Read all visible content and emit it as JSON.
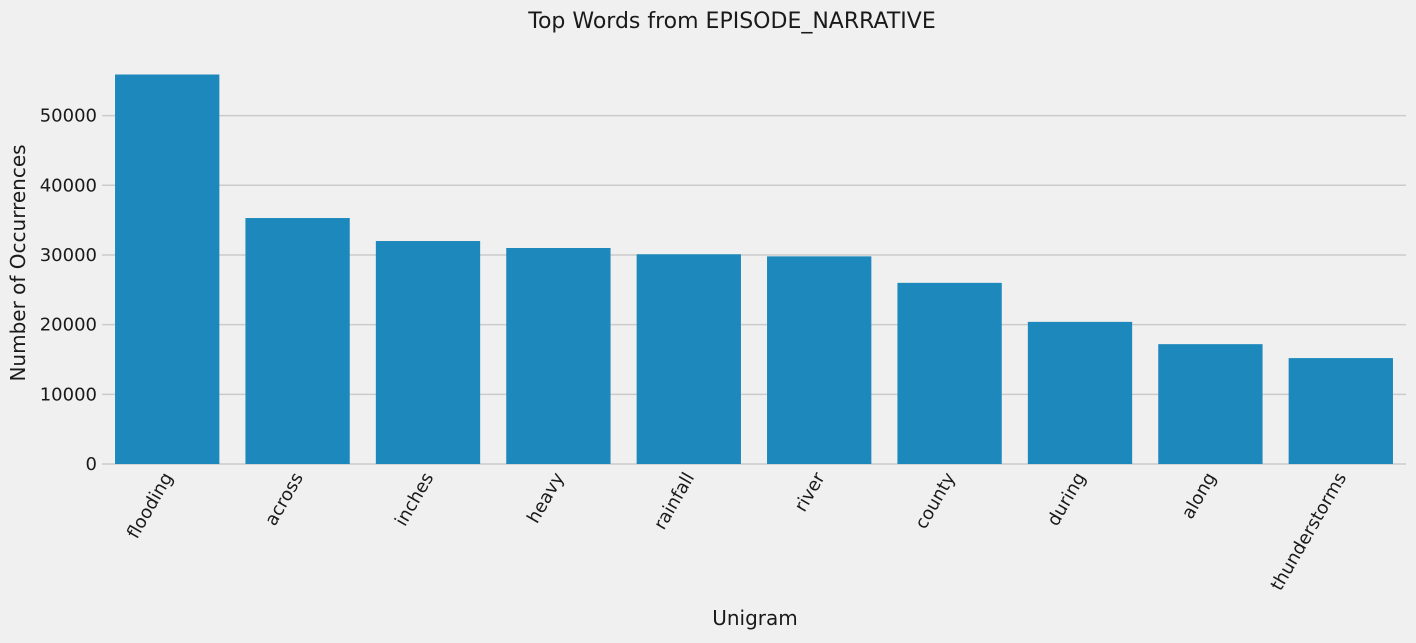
{
  "chart_data": {
    "type": "bar",
    "title": "Top Words from EPISODE_NARRATIVE",
    "xlabel": "Unigram",
    "ylabel": "Number of Occurrences",
    "categories": [
      "flooding",
      "across",
      "inches",
      "heavy",
      "rainfall",
      "river",
      "county",
      "during",
      "along",
      "thunderstorms"
    ],
    "values": [
      55900,
      35300,
      32000,
      31000,
      30100,
      29800,
      26000,
      20400,
      17200,
      15200
    ],
    "ylim": [
      0,
      58700
    ],
    "yticks": [
      0,
      10000,
      20000,
      30000,
      40000,
      50000
    ],
    "grid": "horizontal",
    "bar_color": "#1c88bb",
    "grid_color": "#cbcbcb",
    "background_color": "#f0f0f0"
  }
}
